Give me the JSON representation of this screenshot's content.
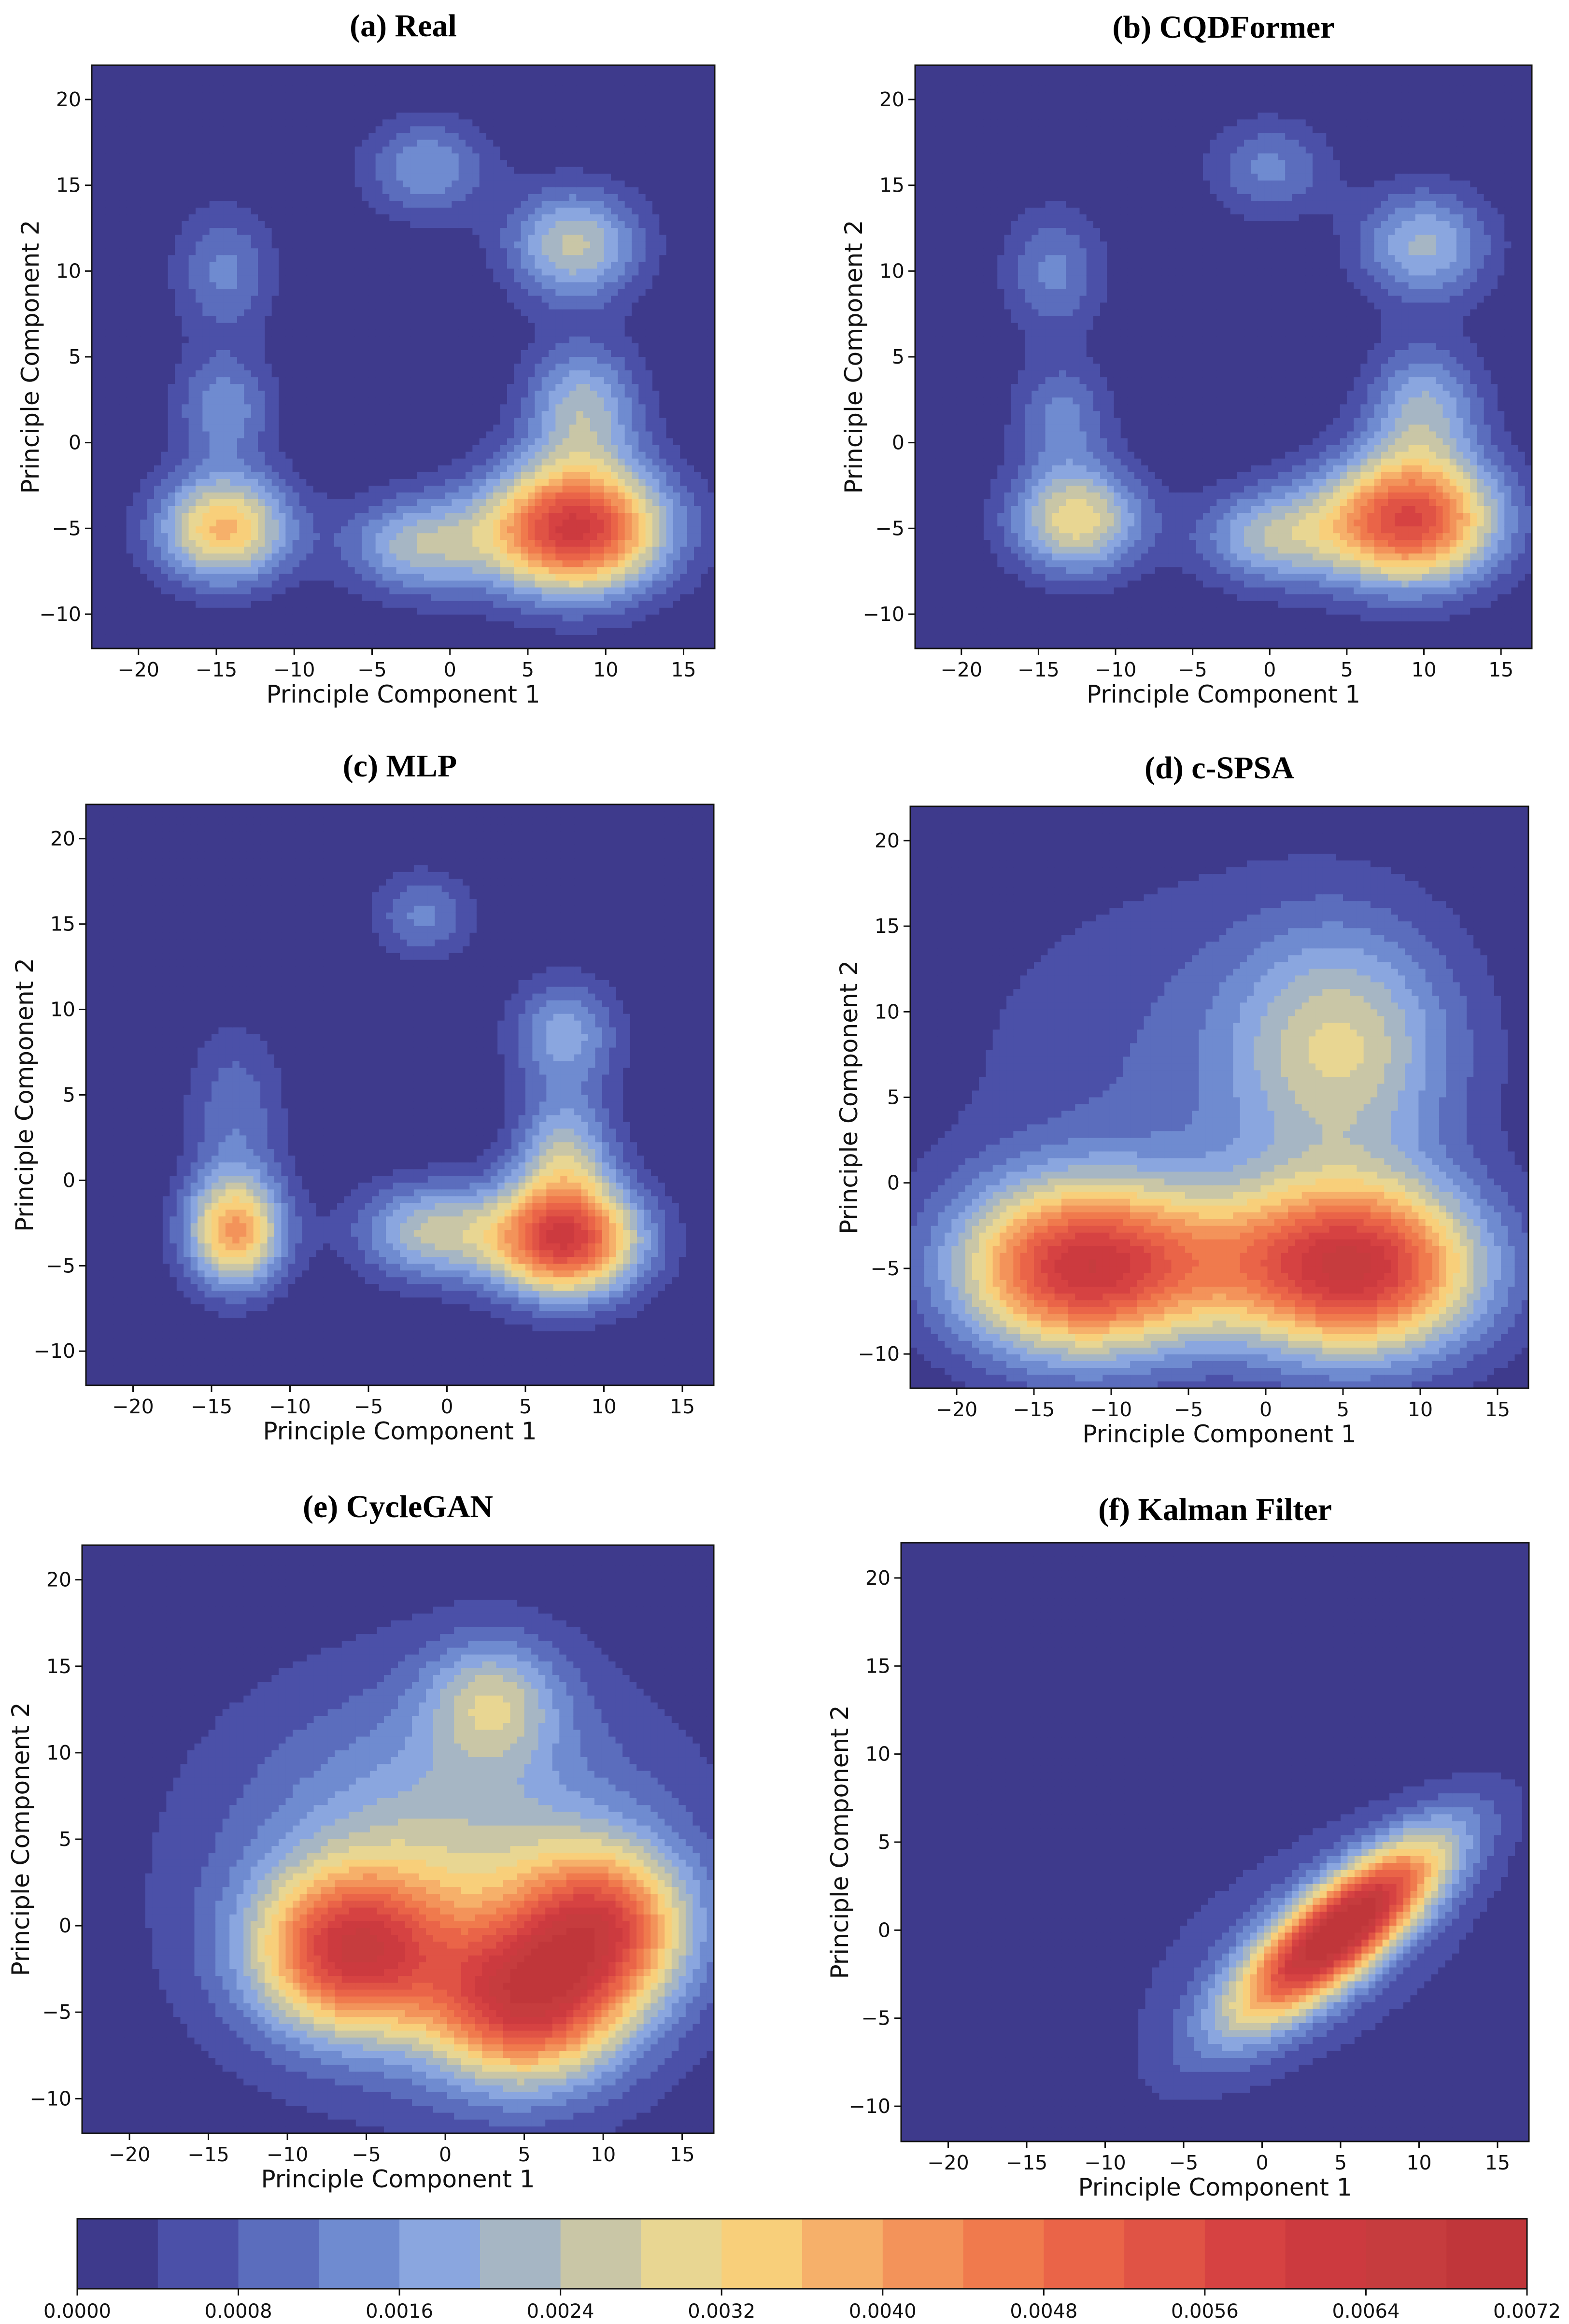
{
  "figure": {
    "colorbar": {
      "levels": [
        0.0,
        0.0004,
        0.0008,
        0.0012,
        0.0016,
        0.002,
        0.0024,
        0.0028,
        0.0032,
        0.0036,
        0.004,
        0.0044,
        0.0048,
        0.0052,
        0.0056,
        0.006,
        0.0064,
        0.0068,
        0.0072
      ],
      "tick_labels": [
        "0.0000",
        "0.0008",
        "0.0016",
        "0.0024",
        "0.0032",
        "0.0040",
        "0.0048",
        "0.0056",
        "0.0064",
        "0.0072"
      ],
      "colors": [
        "#3e3a8c",
        "#4b50a8",
        "#5b6dbd",
        "#6f8bd0",
        "#8aa6df",
        "#a6b6c4",
        "#c9c6a6",
        "#e8d692",
        "#f8cf7a",
        "#f6b06a",
        "#f3935a",
        "#f07a4d",
        "#ea6448",
        "#e05345",
        "#d64242",
        "#cc3a3f",
        "#c63c3e",
        "#c0363a"
      ]
    }
  },
  "chart_data": [
    {
      "type": "heatmap",
      "subtype": "kde-contour",
      "title": "(a) Real",
      "xlabel": "Principle Component 1",
      "ylabel": "Principle Component 2",
      "xlim": [
        -23,
        17
      ],
      "ylim": [
        -12,
        22
      ],
      "xticks": [
        "−20",
        "−15",
        "−10",
        "−5",
        "0",
        "5",
        "10",
        "15"
      ],
      "yticks": [
        "−10",
        "−5",
        "0",
        "5",
        "10",
        "15",
        "20"
      ],
      "peaks": [
        {
          "x": 8,
          "y": -5,
          "sx": 4,
          "sy": 2.6,
          "rho": 0,
          "density": 0.0061
        },
        {
          "x": -14.5,
          "y": -5,
          "sx": 3,
          "sy": 2.2,
          "rho": 0,
          "density": 0.0037
        },
        {
          "x": -2,
          "y": -6,
          "sx": 3.3,
          "sy": 2,
          "rho": 0,
          "density": 0.0022
        },
        {
          "x": 8.5,
          "y": 2,
          "sx": 2.6,
          "sy": 2.6,
          "rho": 0,
          "density": 0.0022
        },
        {
          "x": 8,
          "y": 11.5,
          "sx": 3,
          "sy": 2.3,
          "rho": 0,
          "density": 0.0025
        },
        {
          "x": -1.5,
          "y": 16,
          "sx": 2.8,
          "sy": 2,
          "rho": 0,
          "density": 0.0016
        },
        {
          "x": -14.5,
          "y": 2,
          "sx": 2.2,
          "sy": 2.3,
          "rho": 0,
          "density": 0.0015
        },
        {
          "x": -14.5,
          "y": 10,
          "sx": 2.3,
          "sy": 2.6,
          "rho": 0,
          "density": 0.0013
        }
      ]
    },
    {
      "type": "heatmap",
      "subtype": "kde-contour",
      "title": "(b) CQDFormer",
      "xlabel": "Principle Component 1",
      "ylabel": "Principle Component 2",
      "xlim": [
        -23,
        17
      ],
      "ylim": [
        -12,
        22
      ],
      "xticks": [
        "−20",
        "−15",
        "−10",
        "−5",
        "0",
        "5",
        "10",
        "15"
      ],
      "yticks": [
        "−10",
        "−5",
        "0",
        "5",
        "10",
        "15",
        "20"
      ],
      "peaks": [
        {
          "x": 9,
          "y": -4.5,
          "sx": 4,
          "sy": 2.6,
          "rho": 0,
          "density": 0.0056
        },
        {
          "x": -12.5,
          "y": -4.5,
          "sx": 3,
          "sy": 2.2,
          "rho": 0,
          "density": 0.0031
        },
        {
          "x": 0,
          "y": -5.5,
          "sx": 3.3,
          "sy": 2,
          "rho": 0,
          "density": 0.0021
        },
        {
          "x": 10,
          "y": 2,
          "sx": 2.6,
          "sy": 2.6,
          "rho": 0,
          "density": 0.002
        },
        {
          "x": 10,
          "y": 11.5,
          "sx": 3,
          "sy": 2.3,
          "rho": 0,
          "density": 0.0021
        },
        {
          "x": 0,
          "y": 16,
          "sx": 2.8,
          "sy": 2,
          "rho": 0,
          "density": 0.0013
        },
        {
          "x": -13.5,
          "y": 1.5,
          "sx": 2.2,
          "sy": 2.3,
          "rho": 0,
          "density": 0.0013
        },
        {
          "x": -14,
          "y": 10,
          "sx": 2.3,
          "sy": 2.6,
          "rho": 0,
          "density": 0.0013
        }
      ]
    },
    {
      "type": "heatmap",
      "subtype": "kde-contour",
      "title": "(c) MLP",
      "xlabel": "Principle Component 1",
      "ylabel": "Principle Component 2",
      "xlim": [
        -23,
        17
      ],
      "ylim": [
        -12,
        22
      ],
      "xticks": [
        "−20",
        "−15",
        "−10",
        "−5",
        "0",
        "5",
        "10",
        "15"
      ],
      "yticks": [
        "−10",
        "−5",
        "0",
        "5",
        "10",
        "15",
        "20"
      ],
      "peaks": [
        {
          "x": 7.5,
          "y": -3.5,
          "sx": 3.3,
          "sy": 2.3,
          "rho": 0,
          "density": 0.0058
        },
        {
          "x": -13.5,
          "y": -3,
          "sx": 2.2,
          "sy": 2.3,
          "rho": 0,
          "density": 0.004
        },
        {
          "x": -1,
          "y": -3,
          "sx": 3.3,
          "sy": 2,
          "rho": 0,
          "density": 0.0024
        },
        {
          "x": 7.5,
          "y": 1.5,
          "sx": 2.2,
          "sy": 2.5,
          "rho": 0,
          "density": 0.0022
        },
        {
          "x": 7.5,
          "y": 8.5,
          "sx": 2.4,
          "sy": 2.3,
          "rho": 0,
          "density": 0.0018
        },
        {
          "x": -1.5,
          "y": 15.5,
          "sx": 2.2,
          "sy": 1.8,
          "rho": 0,
          "density": 0.0013
        },
        {
          "x": -13.5,
          "y": 4,
          "sx": 2.2,
          "sy": 3.5,
          "rho": 0,
          "density": 0.0011
        }
      ]
    },
    {
      "type": "heatmap",
      "subtype": "kde-contour",
      "title": "(d) c-SPSA",
      "xlabel": "Principle Component 1",
      "ylabel": "Principle Component 2",
      "xlim": [
        -23,
        17
      ],
      "ylim": [
        -12,
        22
      ],
      "xticks": [
        "−20",
        "−15",
        "−10",
        "−5",
        "0",
        "5",
        "10",
        "15"
      ],
      "yticks": [
        "−10",
        "−5",
        "0",
        "5",
        "10",
        "15",
        "20"
      ],
      "peaks": [
        {
          "x": 6,
          "y": -5,
          "sx": 5.5,
          "sy": 3.5,
          "rho": 0,
          "density": 0.006
        },
        {
          "x": -12,
          "y": -5,
          "sx": 5.5,
          "sy": 3.5,
          "rho": 0,
          "density": 0.0058
        },
        {
          "x": -3,
          "y": -4.5,
          "sx": 5,
          "sy": 3,
          "rho": 0,
          "density": 0.0012
        },
        {
          "x": 5,
          "y": 8,
          "sx": 5,
          "sy": 5,
          "rho": 0,
          "density": 0.0024
        },
        {
          "x": -5,
          "y": 6,
          "sx": 11,
          "sy": 9,
          "rho": 0,
          "density": 0.0008
        }
      ]
    },
    {
      "type": "heatmap",
      "subtype": "kde-contour",
      "title": "(e) CycleGAN",
      "xlabel": "Principle Component 1",
      "ylabel": "Principle Component 2",
      "xlim": [
        -23,
        17
      ],
      "ylim": [
        -12,
        22
      ],
      "xticks": [
        "−20",
        "−15",
        "−10",
        "−5",
        "0",
        "5",
        "10",
        "15"
      ],
      "yticks": [
        "−10",
        "−5",
        "0",
        "5",
        "10",
        "15",
        "20"
      ],
      "peaks": [
        {
          "x": -6,
          "y": -1.5,
          "sx": 4.2,
          "sy": 3.2,
          "rho": 0,
          "density": 0.005
        },
        {
          "x": 5,
          "y": -4.5,
          "sx": 4.2,
          "sy": 3.2,
          "rho": 0,
          "density": 0.005
        },
        {
          "x": 10,
          "y": 0,
          "sx": 3.8,
          "sy": 3.2,
          "rho": 0,
          "density": 0.0044
        },
        {
          "x": 0,
          "y": 4,
          "sx": 8,
          "sy": 6,
          "rho": 0,
          "density": 0.0016
        },
        {
          "x": 3,
          "y": 13,
          "sx": 3,
          "sy": 2.5,
          "rho": 0,
          "density": 0.002
        },
        {
          "x": 0,
          "y": 2,
          "sx": 13,
          "sy": 10,
          "rho": 0,
          "density": 0.0008
        }
      ]
    },
    {
      "type": "heatmap",
      "subtype": "kde-contour",
      "title": "(f) Kalman Filter",
      "xlabel": "Principle Component 1",
      "ylabel": "Principle Component 2",
      "xlim": [
        -23,
        17
      ],
      "ylim": [
        -12,
        22
      ],
      "xticks": [
        "−20",
        "−15",
        "−10",
        "−5",
        "0",
        "5",
        "10",
        "15"
      ],
      "yticks": [
        "−10",
        "−5",
        "0",
        "5",
        "10",
        "15",
        "20"
      ],
      "peaks": [
        {
          "x": 5,
          "y": 0,
          "sx": 4.5,
          "sy": 3.5,
          "rho": 0.8,
          "density": 0.0068
        },
        {
          "x": 3,
          "y": -1,
          "sx": 8,
          "sy": 5.5,
          "rho": 0.5,
          "density": 0.0009
        }
      ]
    }
  ]
}
